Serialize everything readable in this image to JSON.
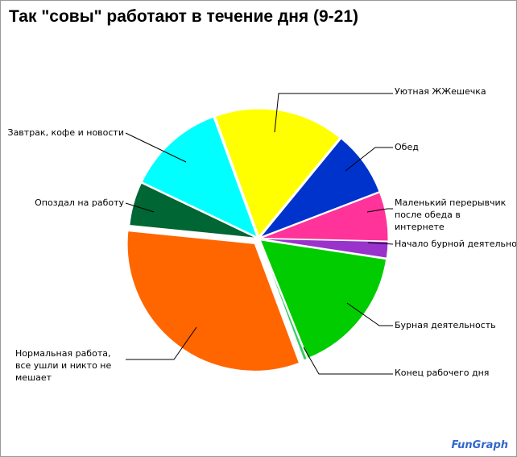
{
  "chart_data": {
    "type": "pie",
    "title": "Так \"совы\" работают в течение дня (9-21)",
    "categories": [
      "Уютная ЖЖешечка",
      "Обед",
      "Маленький перерывчик после обеда в интернете",
      "Начало бурной деятельности",
      "Бурная деятельность",
      "Конец рабочего дня",
      "Нормальная работа, все ушли и никто не мешает",
      "Опоздал на работу",
      "Завтрак, кофе и новости"
    ],
    "values": [
      120,
      60,
      45,
      15,
      120,
      3,
      235,
      40,
      90
    ],
    "colors": [
      "#FFFF00",
      "#0033CC",
      "#FF3399",
      "#9933CC",
      "#00CC00",
      "#33CC66",
      "#FF6600",
      "#006633",
      "#00FFFF"
    ],
    "watermark": "FunGraph"
  }
}
